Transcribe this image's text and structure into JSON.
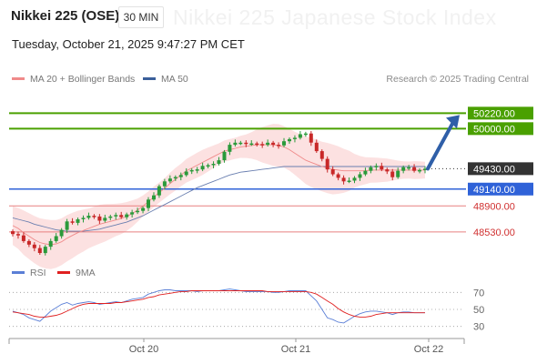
{
  "header": {
    "title": "Nikkei 225 (OSE)",
    "interval": "30 MIN",
    "datetime": "Tuesday, October 21, 2025 9:47:27 PM CET",
    "credit": "Research © 2025 Trading Central",
    "watermark": "Nikkei 225 Japanese Stock Index"
  },
  "legend_main": [
    {
      "label": "MA 20 + Bollinger Bands",
      "color": "#f08a8a"
    },
    {
      "label": "MA 50",
      "color": "#3a5f9a"
    }
  ],
  "legend_rsi": [
    {
      "label": "RSI",
      "color": "#5b7fd6"
    },
    {
      "label": "9MA",
      "color": "#e02020"
    }
  ],
  "colors": {
    "resistance": "#4aa000",
    "pivot": "#2f62d8",
    "support": "#e88080",
    "current": "#333333",
    "up_candle": "#2a9a3a",
    "down_candle": "#c82828",
    "band_fill": "#fbdada",
    "arrow": "#2f5fa8"
  },
  "chart_data": [
    {
      "type": "candlestick",
      "title": "Nikkei 225 (OSE)",
      "interval": "30 MIN",
      "x_ticks": [
        "Oct 20",
        "Oct 21",
        "Oct 22"
      ],
      "ylim": [
        48140,
        50600
      ],
      "levels": [
        {
          "label": "50220.00",
          "value": 50220,
          "kind": "resistance"
        },
        {
          "label": "50000.00",
          "value": 50000,
          "kind": "resistance"
        },
        {
          "label": "49430.00",
          "value": 49430,
          "kind": "current"
        },
        {
          "label": "49140.00",
          "value": 49140,
          "kind": "pivot"
        },
        {
          "label": "48900.00",
          "value": 48900,
          "kind": "support"
        },
        {
          "label": "48530.00",
          "value": 48530,
          "kind": "support"
        }
      ],
      "arrow": {
        "from": 49430,
        "to": 50220,
        "direction": "up"
      },
      "series": [
        {
          "name": "Price",
          "close": [
            48500,
            48480,
            48400,
            48350,
            48300,
            48230,
            48320,
            48400,
            48470,
            48560,
            48680,
            48660,
            48710,
            48730,
            48760,
            48750,
            48690,
            48730,
            48750,
            48770,
            48740,
            48780,
            48810,
            48830,
            48870,
            48990,
            49050,
            49180,
            49250,
            49290,
            49310,
            49340,
            49390,
            49410,
            49420,
            49470,
            49480,
            49500,
            49550,
            49670,
            49770,
            49800,
            49800,
            49780,
            49790,
            49780,
            49770,
            49800,
            49770,
            49760,
            49820,
            49850,
            49870,
            49920,
            49930,
            49800,
            49680,
            49570,
            49420,
            49350,
            49300,
            49250,
            49260,
            49300,
            49350,
            49400,
            49450,
            49470,
            49420,
            49390,
            49310,
            49400,
            49450,
            49450,
            49400,
            49410,
            49430
          ]
        },
        {
          "name": "MA 20",
          "close": [
            48620,
            48580,
            48520,
            48470,
            48420,
            48380,
            48360,
            48350,
            48360,
            48390,
            48440,
            48480,
            48520,
            48550,
            48580,
            48610,
            48640,
            48660,
            48680,
            48700,
            48720,
            48750,
            48790,
            48840,
            48900,
            48960,
            49030,
            49090,
            49150,
            49220,
            49280,
            49340,
            49400,
            49440,
            49480,
            49520,
            49560,
            49600,
            49640,
            49680,
            49700,
            49720,
            49740,
            49750,
            49760,
            49770,
            49770,
            49770,
            49770,
            49760,
            49740,
            49700,
            49650,
            49600,
            49550,
            49520,
            49490,
            49460,
            49440,
            49420,
            49410,
            49400,
            49400,
            49400,
            49400,
            49400,
            49410,
            49410,
            49410,
            49410,
            49410,
            49410,
            49410,
            49410,
            49410,
            49410,
            49410
          ]
        },
        {
          "name": "MA 50",
          "close": [
            48730,
            48710,
            48690,
            48670,
            48640,
            48620,
            48600,
            48580,
            48560,
            48550,
            48540,
            48540,
            48540,
            48540,
            48550,
            48560,
            48570,
            48590,
            48610,
            48630,
            48650,
            48670,
            48700,
            48730,
            48760,
            48800,
            48840,
            48880,
            48920,
            48960,
            49000,
            49040,
            49080,
            49120,
            49160,
            49190,
            49220,
            49250,
            49280,
            49310,
            49340,
            49360,
            49380,
            49390,
            49400,
            49410,
            49420,
            49430,
            49440,
            49450,
            49460,
            49460,
            49460,
            49460,
            49460,
            49460,
            49460,
            49460,
            49460,
            49460,
            49460,
            49460,
            49460,
            49460,
            49460,
            49460,
            49460,
            49460,
            49460,
            49460,
            49460,
            49460,
            49460,
            49460,
            49460,
            49460,
            49460
          ]
        }
      ]
    },
    {
      "type": "line",
      "name": "RSI panel",
      "y_ticks": [
        "70",
        "50",
        "30"
      ],
      "ylim": [
        20,
        80
      ],
      "series": [
        {
          "name": "RSI",
          "values": [
            48,
            46,
            44,
            40,
            38,
            36,
            42,
            48,
            52,
            56,
            58,
            55,
            57,
            58,
            59,
            58,
            56,
            57,
            58,
            59,
            58,
            60,
            62,
            63,
            64,
            68,
            70,
            72,
            73,
            73,
            72,
            72,
            72,
            72,
            71,
            72,
            72,
            72,
            72,
            73,
            74,
            73,
            72,
            71,
            71,
            71,
            71,
            71,
            70,
            70,
            71,
            72,
            72,
            72,
            72,
            66,
            60,
            50,
            40,
            38,
            35,
            34,
            38,
            42,
            45,
            47,
            48,
            48,
            47,
            46,
            44,
            46,
            47,
            47,
            46,
            46,
            46
          ]
        },
        {
          "name": "9MA",
          "values": [
            47,
            46,
            45,
            44,
            42,
            41,
            41,
            42,
            43,
            45,
            48,
            51,
            54,
            56,
            57,
            57,
            57,
            57,
            57,
            58,
            58,
            59,
            60,
            61,
            62,
            64,
            65,
            67,
            68,
            69,
            70,
            71,
            71,
            72,
            72,
            72,
            72,
            72,
            72,
            72,
            72,
            72,
            72,
            72,
            72,
            72,
            72,
            71,
            71,
            71,
            71,
            71,
            71,
            71,
            71,
            70,
            68,
            64,
            60,
            56,
            51,
            47,
            44,
            42,
            41,
            41,
            42,
            44,
            45,
            46,
            46,
            46,
            46,
            46,
            46,
            46,
            46
          ]
        }
      ]
    }
  ]
}
